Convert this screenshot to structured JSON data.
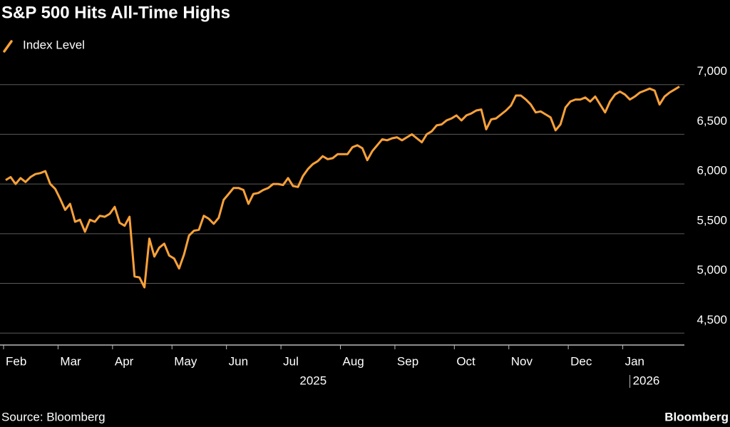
{
  "chart_data": {
    "type": "line",
    "title": "S&P 500 Hits All-Time Highs",
    "source": "Source: Bloomberg",
    "brand": "Bloomberg",
    "categories": [
      "Feb",
      null,
      null,
      null,
      null,
      null,
      null,
      null,
      null,
      null,
      null,
      "Mar",
      null,
      null,
      null,
      null,
      null,
      null,
      null,
      null,
      null,
      null,
      "Apr",
      null,
      null,
      null,
      null,
      null,
      null,
      null,
      null,
      null,
      null,
      null,
      "May",
      null,
      null,
      null,
      null,
      null,
      null,
      null,
      null,
      null,
      null,
      "Jun",
      null,
      null,
      null,
      null,
      null,
      null,
      null,
      null,
      null,
      null,
      "Jul",
      null,
      null,
      null,
      null,
      null,
      null,
      null,
      null,
      null,
      null,
      null,
      "Aug",
      null,
      null,
      null,
      null,
      null,
      null,
      null,
      null,
      null,
      null,
      "Sep",
      null,
      null,
      null,
      null,
      null,
      null,
      null,
      null,
      null,
      null,
      null,
      "Oct",
      null,
      null,
      null,
      null,
      null,
      null,
      null,
      null,
      null,
      null,
      "Nov",
      null,
      null,
      null,
      null,
      null,
      null,
      null,
      null,
      null,
      null,
      null,
      "Dec",
      null,
      null,
      null,
      null,
      null,
      null,
      null,
      null,
      null,
      null,
      "Jan",
      null,
      null,
      null,
      null,
      null,
      null,
      null,
      null,
      null,
      null,
      null
    ],
    "x_groups": [
      "2025",
      "2026"
    ],
    "series": [
      {
        "name": "Index Level",
        "color": "#f9a13a",
        "values": [
          6040,
          6070,
          6000,
          6060,
          6020,
          6070,
          6100,
          6110,
          6130,
          6000,
          5950,
          5850,
          5740,
          5800,
          5620,
          5640,
          5520,
          5640,
          5620,
          5680,
          5670,
          5700,
          5770,
          5610,
          5580,
          5670,
          5070,
          5060,
          4960,
          5450,
          5270,
          5360,
          5400,
          5280,
          5250,
          5150,
          5290,
          5480,
          5530,
          5540,
          5680,
          5650,
          5600,
          5660,
          5840,
          5900,
          5960,
          5960,
          5940,
          5800,
          5900,
          5910,
          5940,
          5960,
          6000,
          6000,
          5990,
          6060,
          5980,
          5970,
          6080,
          6150,
          6200,
          6230,
          6280,
          6250,
          6260,
          6300,
          6300,
          6300,
          6370,
          6390,
          6360,
          6240,
          6330,
          6390,
          6450,
          6440,
          6460,
          6470,
          6440,
          6470,
          6500,
          6460,
          6420,
          6500,
          6530,
          6590,
          6600,
          6640,
          6660,
          6690,
          6640,
          6690,
          6710,
          6740,
          6750,
          6550,
          6650,
          6660,
          6700,
          6740,
          6790,
          6890,
          6890,
          6850,
          6800,
          6720,
          6730,
          6700,
          6670,
          6540,
          6600,
          6770,
          6830,
          6850,
          6850,
          6870,
          6830,
          6880,
          6800,
          6720,
          6830,
          6900,
          6930,
          6900,
          6850,
          6880,
          6920,
          6940,
          6960,
          6940,
          6800,
          6880,
          6920,
          6950,
          6980
        ]
      }
    ],
    "ylim": [
      4380,
      7170
    ],
    "yticks": [
      {
        "value": 4500,
        "label": "4,500"
      },
      {
        "value": 5000,
        "label": "5,000"
      },
      {
        "value": 5500,
        "label": "5,500"
      },
      {
        "value": 6000,
        "label": "6,000"
      },
      {
        "value": 6500,
        "label": "6,500"
      },
      {
        "value": 7000,
        "label": "7,000"
      }
    ],
    "grid": true
  }
}
